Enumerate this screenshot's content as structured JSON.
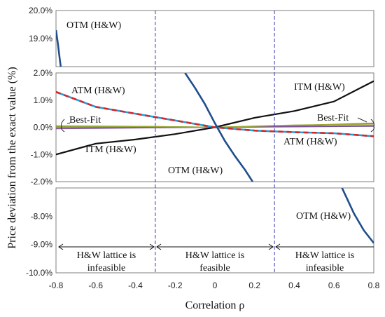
{
  "chart_data": {
    "type": "line",
    "xlabel": "Correlation ρ",
    "ylabel": "Price deviation from the exact value (%)",
    "x_ticks": [
      "-0.8",
      "-0.6",
      "-0.4",
      "-0.2",
      "0",
      "0.2",
      "0.4",
      "0.6",
      "0.8"
    ],
    "xlim": [
      -0.8,
      0.8
    ],
    "grid": false,
    "broken_y_axis": true,
    "panels": [
      {
        "name": "top",
        "ylim": [
          18.0,
          20.0
        ],
        "y_ticks": [
          {
            "v": 19.0,
            "label": "19.0%"
          },
          {
            "v": 20.0,
            "label": "20.0%"
          }
        ]
      },
      {
        "name": "middle",
        "ylim": [
          -2.0,
          2.0
        ],
        "y_ticks": [
          {
            "v": -2.0,
            "label": "-2.0%"
          },
          {
            "v": -1.0,
            "label": "-1.0%"
          },
          {
            "v": 0.0,
            "label": "0.0%"
          },
          {
            "v": 1.0,
            "label": "1.0%"
          },
          {
            "v": 2.0,
            "label": "2.0%"
          }
        ]
      },
      {
        "name": "bottom",
        "ylim": [
          -10.0,
          -7.0
        ],
        "y_ticks": [
          {
            "v": -10.0,
            "label": "-10.0%"
          },
          {
            "v": -9.0,
            "label": "-9.0%"
          },
          {
            "v": -8.0,
            "label": "-8.0%"
          }
        ]
      }
    ],
    "feasibility_boundaries": [
      -0.3,
      0.3
    ],
    "series": [
      {
        "label": "ITM (H&W)",
        "color": "#111111",
        "panel": "middle",
        "x": [
          -0.8,
          -0.6,
          -0.4,
          -0.2,
          0.0,
          0.2,
          0.4,
          0.6,
          0.8
        ],
        "y": [
          -1.0,
          -0.6,
          -0.45,
          -0.25,
          0.0,
          0.35,
          0.6,
          0.95,
          1.7
        ]
      },
      {
        "label": "ATM (H&W)",
        "color": "#1f9fd8",
        "dash_color": "#d6262a",
        "panel": "middle",
        "x": [
          -0.8,
          -0.6,
          -0.4,
          -0.2,
          0.0,
          0.2,
          0.4,
          0.6,
          0.8
        ],
        "y": [
          1.3,
          0.75,
          0.5,
          0.25,
          0.0,
          -0.12,
          -0.18,
          -0.22,
          -0.33
        ]
      },
      {
        "label": "OTM (H&W)",
        "color": "#1f4e8c",
        "panel": "middle",
        "x": [
          -0.15,
          -0.1,
          -0.05,
          0.0,
          0.05,
          0.1,
          0.15,
          0.19
        ],
        "y": [
          2.0,
          1.45,
          0.85,
          0.15,
          -0.5,
          -1.05,
          -1.55,
          -2.0
        ]
      },
      {
        "label": "OTM (H&W)",
        "color": "#1f4e8c",
        "panel": "top",
        "x": [
          -0.8,
          -0.79,
          -0.78,
          -0.776
        ],
        "y": [
          19.3,
          18.8,
          18.2,
          18.0
        ]
      },
      {
        "label": "OTM (H&W)",
        "color": "#1f4e8c",
        "panel": "bottom",
        "x": [
          0.64,
          0.66,
          0.7,
          0.75,
          0.8
        ],
        "y": [
          -7.0,
          -7.3,
          -7.9,
          -8.5,
          -8.95
        ]
      },
      {
        "label": "Best-Fit",
        "color": "#2e7d32",
        "panel": "middle",
        "x": [
          -0.8,
          -0.4,
          0.0,
          0.4,
          0.8
        ],
        "y": [
          0.04,
          0.03,
          0.0,
          0.03,
          0.06
        ]
      },
      {
        "label": "Best-Fit",
        "color": "#b5651d",
        "panel": "middle",
        "x": [
          -0.8,
          -0.4,
          0.0,
          0.4,
          0.8
        ],
        "y": [
          0.0,
          0.01,
          0.0,
          0.06,
          0.15
        ]
      },
      {
        "label": "Best-Fit",
        "color": "#7b4fa0",
        "panel": "middle",
        "x": [
          -0.8,
          -0.4,
          0.0,
          0.4,
          0.8
        ],
        "y": [
          -0.05,
          -0.02,
          0.0,
          0.02,
          0.04
        ]
      },
      {
        "label": "Best-Fit",
        "color": "#9aa833",
        "panel": "middle",
        "x": [
          -0.8,
          -0.4,
          0.0,
          0.4,
          0.8
        ],
        "y": [
          0.02,
          0.03,
          0.0,
          0.08,
          0.12
        ]
      }
    ],
    "annotations": {
      "otm_top": "OTM (H&W)",
      "atm_left": "ATM (H&W)",
      "itm_right": "ITM (H&W)",
      "best_fit_left": "Best-Fit",
      "best_fit_right": "Best-Fit",
      "itm_left": "ITM (H&W)",
      "atm_right": "ATM (H&W)",
      "otm_middle": "OTM (H&W)",
      "otm_bottom": "OTM (H&W)"
    },
    "regions": [
      {
        "line1": "H&W lattice is",
        "line2": "infeasible"
      },
      {
        "line1": "H&W lattice is",
        "line2": "feasible"
      },
      {
        "line1": "H&W lattice is",
        "line2": "infeasible"
      }
    ]
  }
}
